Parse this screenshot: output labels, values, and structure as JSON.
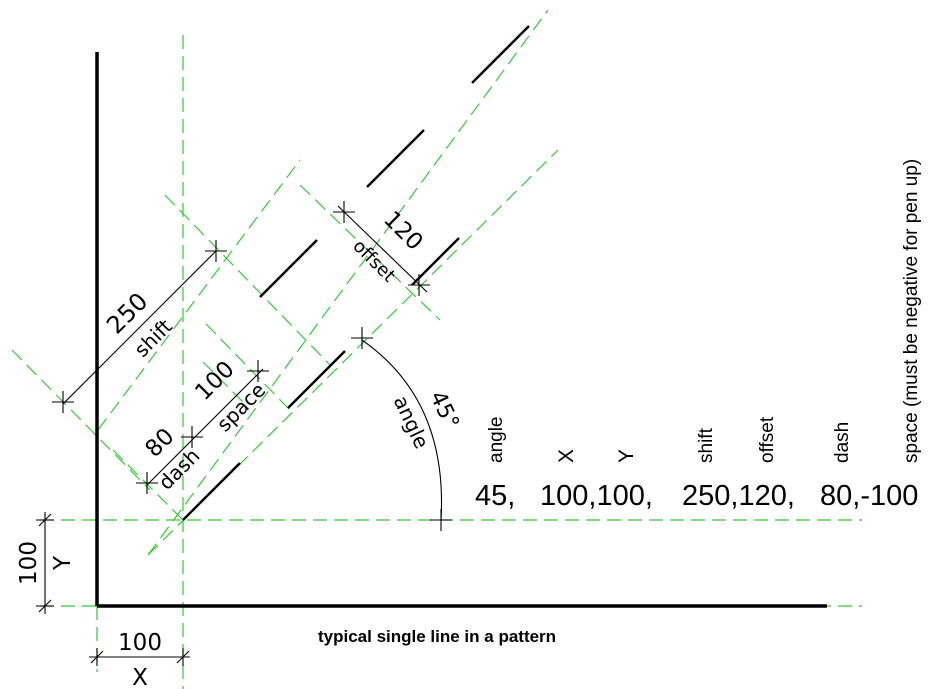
{
  "colors": {
    "guide": "#33cc33",
    "ink": "#000000"
  },
  "caption": "typical single line in a pattern",
  "field_labels": {
    "angle": "angle",
    "x": "X",
    "y": "Y",
    "shift": "shift",
    "offset": "offset",
    "dash": "dash",
    "space": "space (must be negative for pen up)"
  },
  "definition_values": {
    "angle": "45,",
    "xy": "100,100,",
    "shift_offset": "250,120,",
    "dash_space": "80,-100"
  },
  "dimensions": {
    "x_value": "100",
    "x_label": "X",
    "y_value": "100",
    "y_label": "Y",
    "shift_value": "250",
    "shift_label": "shift",
    "offset_value": "120",
    "offset_label": "offset",
    "dash_value": "80",
    "dash_label": "dash",
    "space_value": "100",
    "space_label": "space",
    "angle_value": "45°",
    "angle_label": "angle"
  }
}
